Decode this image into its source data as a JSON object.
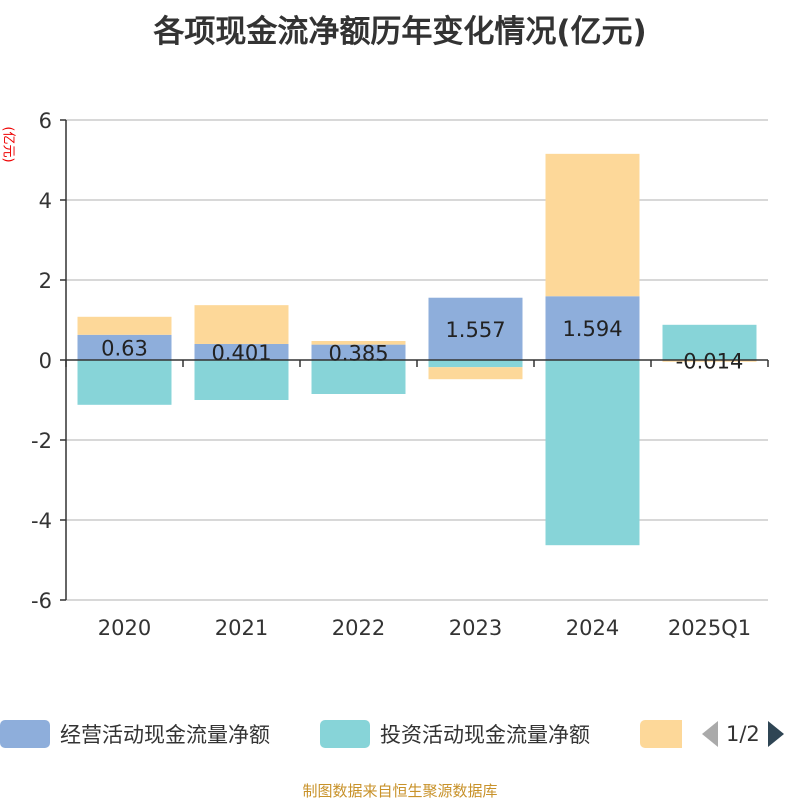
{
  "chart_data": {
    "type": "bar",
    "stacked": true,
    "title": "各项现金流净额历年变化情况(亿元)",
    "ylabel": "(亿元)",
    "categories": [
      "2020",
      "2021",
      "2022",
      "2023",
      "2024",
      "2025Q1"
    ],
    "ylim": [
      -6,
      6
    ],
    "yticks": [
      -6,
      -4,
      -2,
      0,
      2,
      4,
      6
    ],
    "grid": true,
    "series": [
      {
        "name": "经营活动现金流量净额",
        "color": "#8eaedb",
        "values": [
          0.63,
          0.401,
          0.385,
          1.557,
          1.594,
          -0.014
        ],
        "labels": [
          "0.63",
          "0.401",
          "0.385",
          "1.557",
          "1.594",
          "-0.014"
        ]
      },
      {
        "name": "投资活动现金流量净额",
        "color": "#87d4d8",
        "values": [
          -1.12,
          -1.0,
          -0.85,
          -0.18,
          -4.63,
          0.88
        ]
      },
      {
        "name": "",
        "color": "#fdd899",
        "values": [
          0.45,
          0.97,
          0.09,
          -0.3,
          3.56,
          -0.03
        ]
      }
    ],
    "legend": {
      "position": "bottom",
      "page": "1/2"
    }
  },
  "source": "制图数据来自恒生聚源数据库"
}
